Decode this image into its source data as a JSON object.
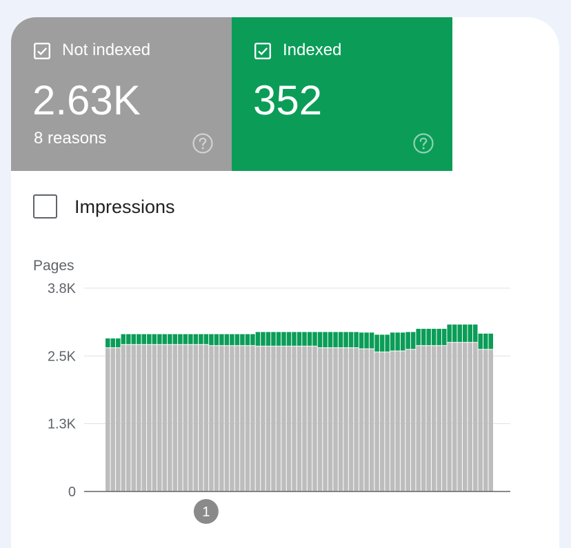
{
  "summary": {
    "not_indexed": {
      "label": "Not indexed",
      "value": "2.63K",
      "sub": "8 reasons",
      "color": "#9e9e9e"
    },
    "indexed": {
      "label": "Indexed",
      "value": "352",
      "color": "#0b9d58"
    },
    "help_icon": "help-circle-icon"
  },
  "impressions_toggle": {
    "label": "Impressions",
    "checked": false
  },
  "chart_data": {
    "type": "bar",
    "stacked": true,
    "ylabel": "Pages",
    "yticks": [
      "0",
      "1.3K",
      "2.5K",
      "3.8K"
    ],
    "ylim": [
      0,
      3800
    ],
    "grid": true,
    "annotation": {
      "label": "1",
      "bar_index": 19
    },
    "series": [
      {
        "name": "Not indexed",
        "color": "#bdbdbd",
        "values": [
          2680,
          2680,
          2680,
          2740,
          2740,
          2740,
          2740,
          2740,
          2740,
          2740,
          2740,
          2740,
          2740,
          2740,
          2740,
          2740,
          2740,
          2740,
          2740,
          2740,
          2720,
          2720,
          2720,
          2720,
          2720,
          2720,
          2720,
          2720,
          2720,
          2710,
          2710,
          2710,
          2710,
          2710,
          2710,
          2710,
          2710,
          2710,
          2710,
          2710,
          2710,
          2680,
          2680,
          2680,
          2680,
          2680,
          2680,
          2680,
          2680,
          2660,
          2660,
          2660,
          2600,
          2600,
          2600,
          2620,
          2620,
          2620,
          2650,
          2650,
          2720,
          2720,
          2720,
          2720,
          2720,
          2720,
          2780,
          2780,
          2780,
          2780,
          2780,
          2780,
          2650,
          2650,
          2650
        ]
      },
      {
        "name": "Indexed",
        "color": "#0b9d58",
        "values": [
          180,
          180,
          180,
          200,
          200,
          200,
          200,
          200,
          200,
          200,
          200,
          200,
          200,
          200,
          200,
          200,
          200,
          200,
          200,
          200,
          220,
          220,
          220,
          220,
          220,
          220,
          220,
          220,
          220,
          270,
          270,
          270,
          270,
          270,
          270,
          270,
          270,
          270,
          270,
          270,
          270,
          300,
          300,
          300,
          300,
          300,
          300,
          300,
          300,
          310,
          310,
          310,
          330,
          330,
          330,
          350,
          350,
          350,
          330,
          330,
          320,
          320,
          320,
          320,
          320,
          320,
          340,
          340,
          340,
          340,
          340,
          340,
          300,
          300,
          300
        ]
      }
    ]
  }
}
